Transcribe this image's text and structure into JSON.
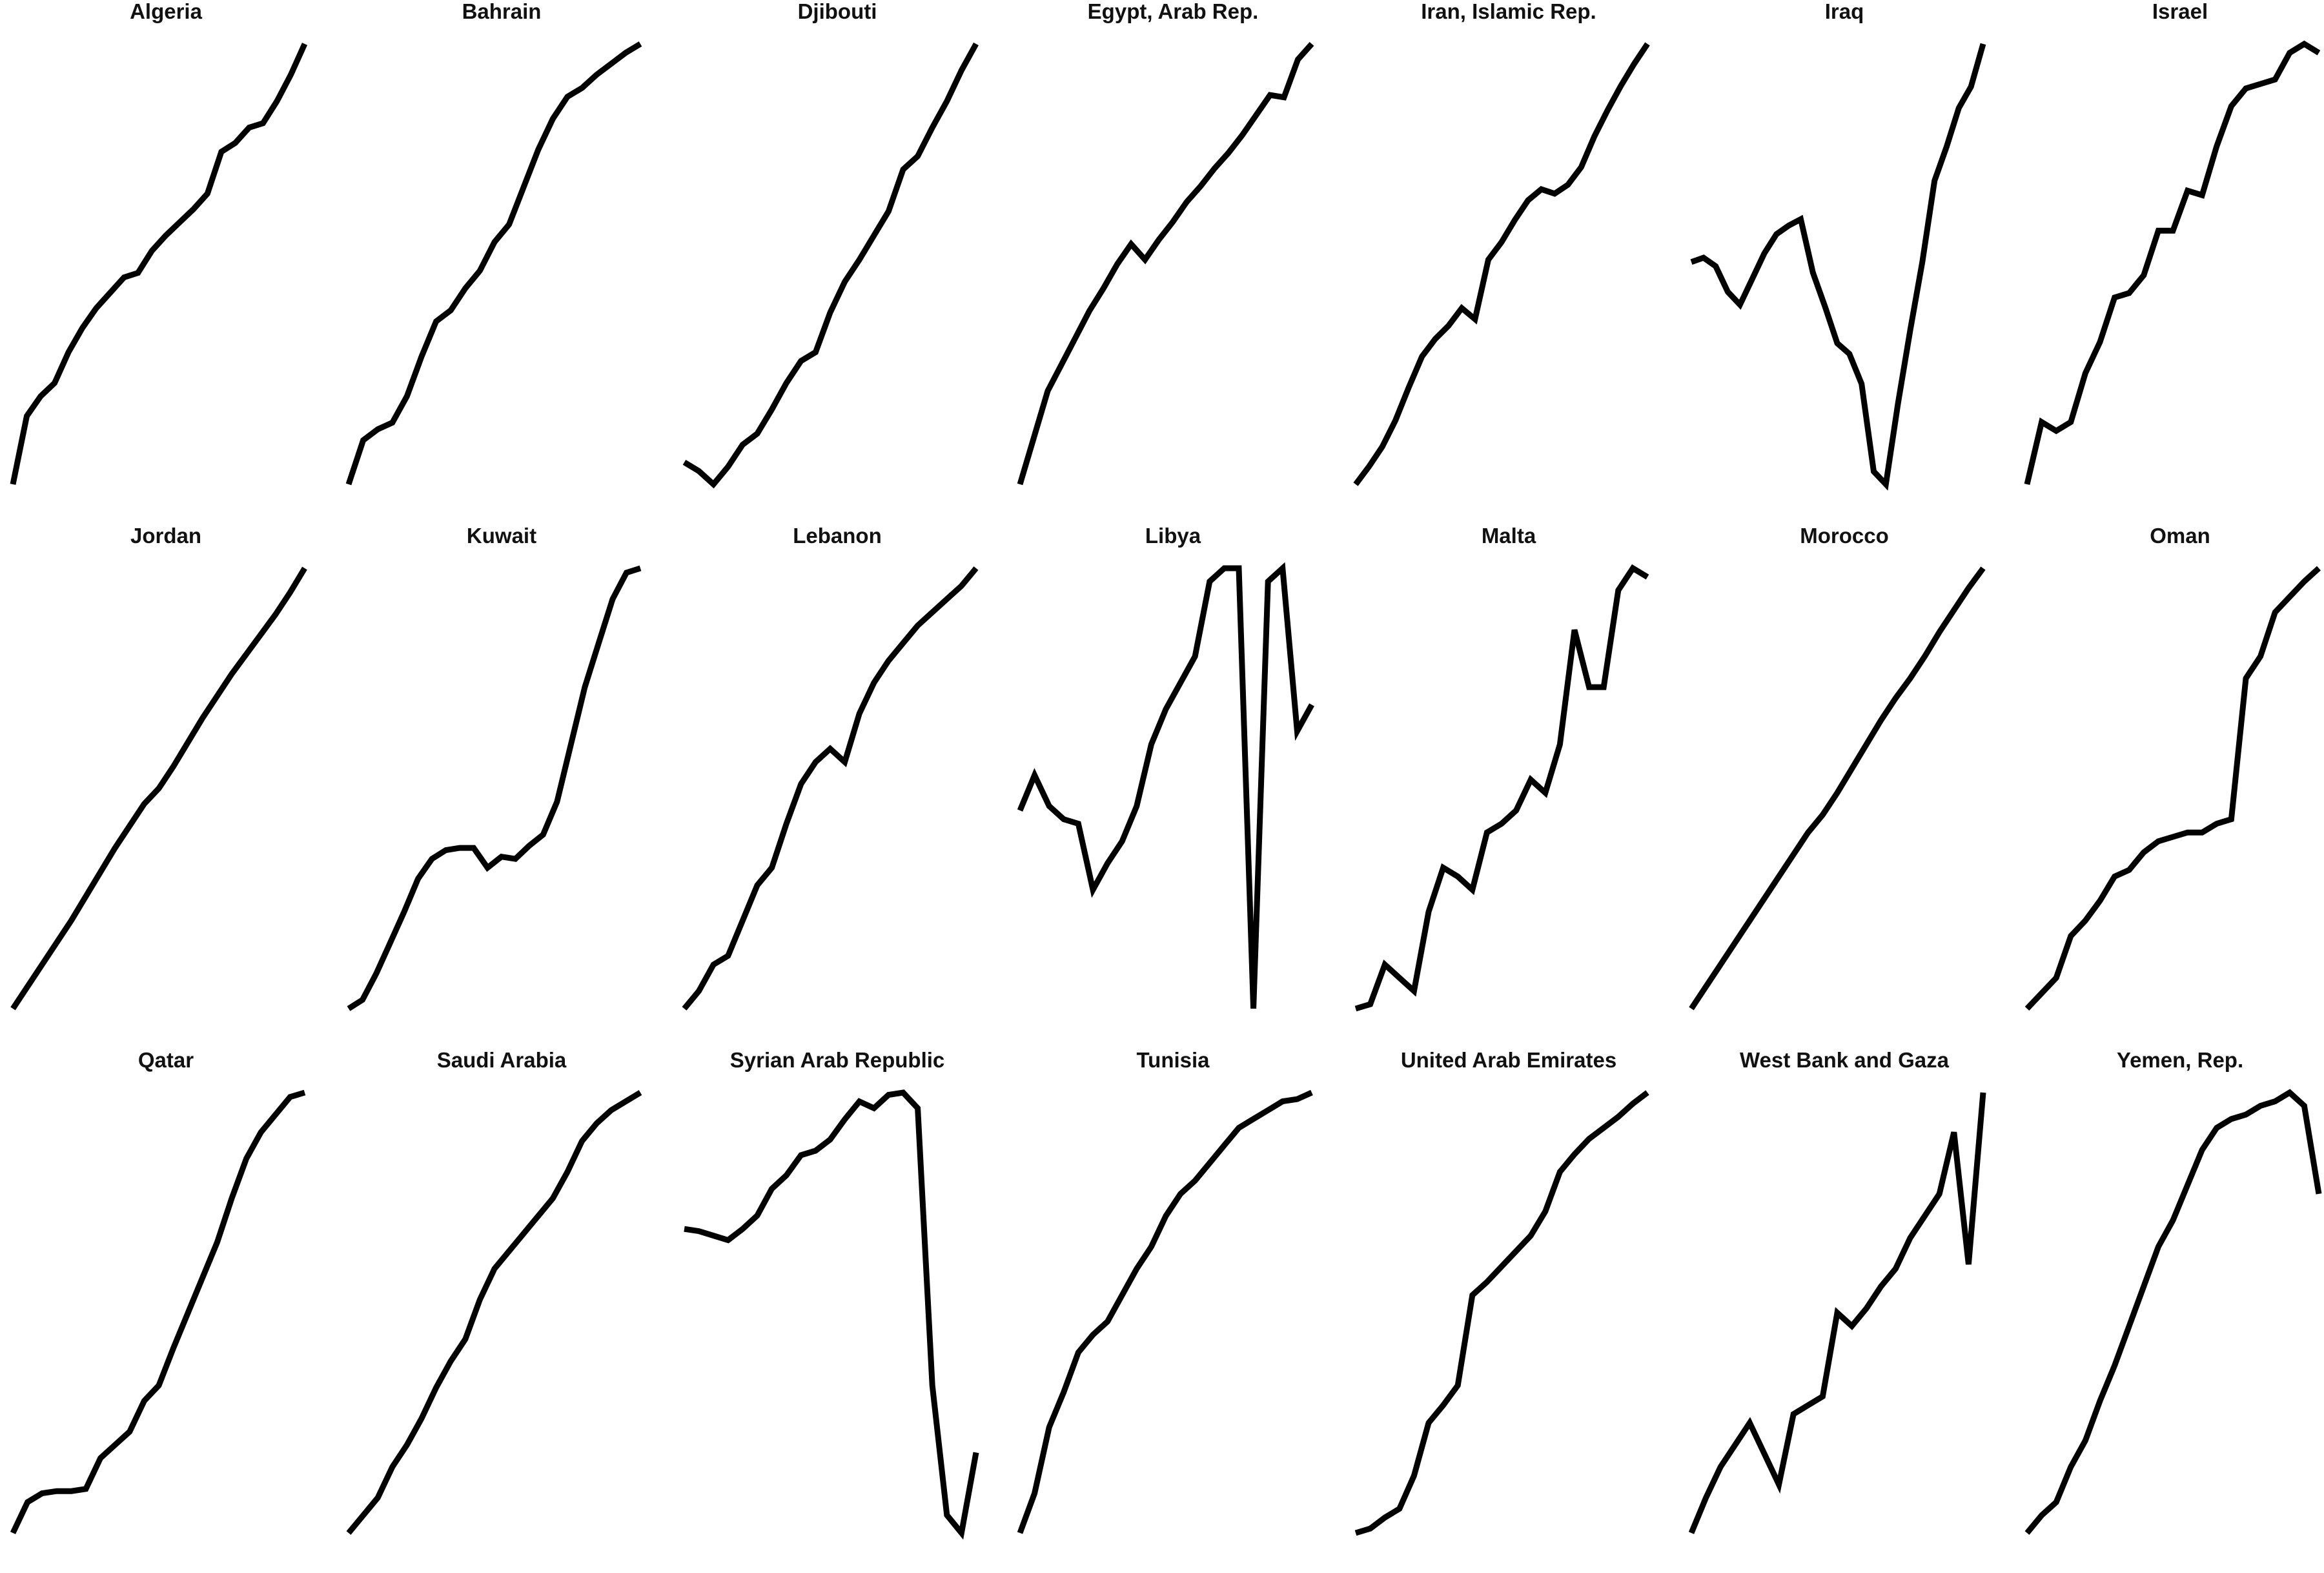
{
  "chart_data": [
    {
      "type": "line",
      "title": "Algeria",
      "values": [
        0,
        0.155,
        0.2,
        0.23,
        0.3,
        0.355,
        0.4,
        0.435,
        0.47,
        0.48,
        0.53,
        0.565,
        0.595,
        0.625,
        0.66,
        0.755,
        0.775,
        0.81,
        0.82,
        0.87,
        0.93,
        1.0
      ]
    },
    {
      "type": "line",
      "title": "Bahrain",
      "values": [
        0,
        0.1,
        0.125,
        0.14,
        0.2,
        0.29,
        0.37,
        0.395,
        0.445,
        0.485,
        0.55,
        0.59,
        0.675,
        0.76,
        0.83,
        0.88,
        0.9,
        0.93,
        0.955,
        0.98,
        1.0
      ]
    },
    {
      "type": "line",
      "title": "Djibouti",
      "values": [
        0.05,
        0.03,
        0,
        0.04,
        0.09,
        0.115,
        0.17,
        0.23,
        0.28,
        0.3,
        0.39,
        0.46,
        0.51,
        0.565,
        0.62,
        0.715,
        0.745,
        0.81,
        0.87,
        0.94,
        1.0
      ]
    },
    {
      "type": "line",
      "title": "Egypt, Arab Rep.",
      "values": [
        0,
        0.105,
        0.21,
        0.27,
        0.33,
        0.39,
        0.44,
        0.495,
        0.54,
        0.505,
        0.55,
        0.59,
        0.635,
        0.67,
        0.71,
        0.745,
        0.785,
        0.83,
        0.875,
        0.87,
        0.955,
        0.99
      ]
    },
    {
      "type": "line",
      "title": "Iran, Islamic Rep.",
      "values": [
        0,
        0.04,
        0.085,
        0.145,
        0.22,
        0.29,
        0.33,
        0.36,
        0.4,
        0.375,
        0.51,
        0.55,
        0.6,
        0.645,
        0.67,
        0.66,
        0.68,
        0.72,
        0.79,
        0.85,
        0.905,
        0.955,
        1.0
      ]
    },
    {
      "type": "line",
      "title": "Iraq",
      "values": [
        0.49,
        0.5,
        0.48,
        0.42,
        0.39,
        0.45,
        0.51,
        0.555,
        0.575,
        0.59,
        0.465,
        0.385,
        0.3,
        0.275,
        0.205,
        0,
        -0.03,
        0.16,
        0.33,
        0.49,
        0.68,
        0.76,
        0.85,
        0.9,
        1.0
      ]
    },
    {
      "type": "line",
      "title": "Israel",
      "values": [
        0,
        0.14,
        0.12,
        0.14,
        0.25,
        0.32,
        0.42,
        0.43,
        0.47,
        0.57,
        0.57,
        0.66,
        0.65,
        0.76,
        0.85,
        0.89,
        0.9,
        0.91,
        0.97,
        0.99,
        0.97
      ]
    },
    {
      "type": "line",
      "title": "Jordan",
      "values": [
        0,
        0.05,
        0.1,
        0.15,
        0.2,
        0.255,
        0.31,
        0.365,
        0.415,
        0.465,
        0.5,
        0.55,
        0.605,
        0.66,
        0.71,
        0.76,
        0.805,
        0.85,
        0.895,
        0.945,
        1.0
      ]
    },
    {
      "type": "line",
      "title": "Kuwait",
      "values": [
        0,
        0.02,
        0.08,
        0.15,
        0.22,
        0.295,
        0.34,
        0.36,
        0.365,
        0.365,
        0.32,
        0.345,
        0.34,
        0.37,
        0.395,
        0.47,
        0.6,
        0.73,
        0.83,
        0.93,
        0.99,
        1.0
      ]
    },
    {
      "type": "line",
      "title": "Lebanon",
      "values": [
        0,
        0.04,
        0.1,
        0.12,
        0.2,
        0.28,
        0.32,
        0.42,
        0.51,
        0.56,
        0.59,
        0.56,
        0.67,
        0.74,
        0.79,
        0.83,
        0.87,
        0.9,
        0.93,
        0.96,
        1.0
      ]
    },
    {
      "type": "line",
      "title": "Libya",
      "values": [
        0.45,
        0.53,
        0.46,
        0.43,
        0.42,
        0.27,
        0.33,
        0.38,
        0.46,
        0.6,
        0.68,
        0.74,
        0.8,
        0.97,
        1.0,
        1.0,
        0.0,
        0.97,
        1.0,
        0.63,
        0.69
      ]
    },
    {
      "type": "line",
      "title": "Malta",
      "values": [
        0,
        0.01,
        0.1,
        0.07,
        0.04,
        0.22,
        0.32,
        0.3,
        0.27,
        0.4,
        0.42,
        0.45,
        0.52,
        0.49,
        0.6,
        0.86,
        0.73,
        0.73,
        0.95,
        1.0,
        0.98
      ]
    },
    {
      "type": "line",
      "title": "Morocco",
      "values": [
        0,
        0.05,
        0.1,
        0.15,
        0.2,
        0.25,
        0.3,
        0.35,
        0.4,
        0.44,
        0.49,
        0.545,
        0.6,
        0.655,
        0.705,
        0.75,
        0.8,
        0.855,
        0.905,
        0.955,
        1.0
      ]
    },
    {
      "type": "line",
      "title": "Oman",
      "values": [
        0,
        0.035,
        0.07,
        0.165,
        0.2,
        0.245,
        0.3,
        0.315,
        0.355,
        0.38,
        0.39,
        0.4,
        0.4,
        0.42,
        0.43,
        0.75,
        0.8,
        0.9,
        0.935,
        0.97,
        1.0
      ]
    },
    {
      "type": "line",
      "title": "Qatar",
      "values": [
        0,
        0.07,
        0.09,
        0.095,
        0.095,
        0.1,
        0.17,
        0.2,
        0.23,
        0.3,
        0.335,
        0.42,
        0.5,
        0.58,
        0.66,
        0.76,
        0.85,
        0.91,
        0.95,
        0.99,
        1.0
      ]
    },
    {
      "type": "line",
      "title": "Saudi Arabia",
      "values": [
        0,
        0.04,
        0.08,
        0.15,
        0.2,
        0.26,
        0.33,
        0.39,
        0.44,
        0.53,
        0.6,
        0.64,
        0.68,
        0.72,
        0.76,
        0.82,
        0.89,
        0.93,
        0.96,
        0.98,
        1.0
      ]
    },
    {
      "type": "line",
      "title": "Syrian Arab Republic",
      "values": [
        0.68,
        0.675,
        0.665,
        0.655,
        0.68,
        0.71,
        0.77,
        0.8,
        0.845,
        0.855,
        0.88,
        0.925,
        0.965,
        0.95,
        0.98,
        0.985,
        0.95,
        0.33,
        0.04,
        0,
        0.18
      ]
    },
    {
      "type": "line",
      "title": "Tunisia",
      "values": [
        0,
        0.09,
        0.24,
        0.32,
        0.41,
        0.45,
        0.48,
        0.54,
        0.6,
        0.65,
        0.72,
        0.77,
        0.8,
        0.84,
        0.88,
        0.92,
        0.94,
        0.96,
        0.98,
        0.985,
        1.0
      ]
    },
    {
      "type": "line",
      "title": "United Arab Emirates",
      "values": [
        0,
        0.01,
        0.035,
        0.055,
        0.13,
        0.25,
        0.29,
        0.335,
        0.54,
        0.57,
        0.605,
        0.64,
        0.675,
        0.73,
        0.82,
        0.86,
        0.895,
        0.92,
        0.945,
        0.975,
        1.0
      ]
    },
    {
      "type": "line",
      "title": "West Bank and Gaza",
      "values": [
        0,
        0.08,
        0.15,
        0.2,
        0.25,
        0.18,
        0.11,
        0.27,
        0.29,
        0.31,
        0.5,
        0.47,
        0.51,
        0.56,
        0.6,
        0.67,
        0.72,
        0.77,
        0.91,
        0.61,
        1.0
      ]
    },
    {
      "type": "line",
      "title": "Yemen, Rep.",
      "values": [
        0,
        0.04,
        0.07,
        0.15,
        0.21,
        0.3,
        0.38,
        0.47,
        0.56,
        0.65,
        0.71,
        0.79,
        0.87,
        0.92,
        0.94,
        0.95,
        0.97,
        0.98,
        1.0,
        0.97,
        0.77
      ]
    }
  ]
}
